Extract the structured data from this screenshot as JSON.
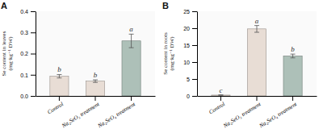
{
  "chart_data": [
    {
      "type": "bar",
      "title": "A",
      "categories": [
        "Control",
        "Na₂SeO₃ treatment",
        "Na₂SeO₄ treatment"
      ],
      "values": [
        0.093,
        0.07,
        0.26
      ],
      "errors": [
        0.008,
        0.006,
        0.032
      ],
      "colors": [
        "#e8ddd5",
        "#e8ddd5",
        "#adc0b8"
      ],
      "y_label": "Se content in leaves\n(mg·kg⁻¹ DW)",
      "ylim": [
        0,
        0.4
      ],
      "yticks": [
        {
          "value": 0.0,
          "label": "0.0"
        },
        0.1,
        0.2,
        0.3,
        0.4
      ],
      "annotations": [
        "b",
        "b",
        "a"
      ],
      "grid": false
    },
    {
      "type": "bar",
      "title": "B",
      "categories": [
        "Control",
        "Na₂SeO₃ treatment",
        "Na₂SeO₄ treatment"
      ],
      "values": [
        0.25,
        19.8,
        11.8
      ],
      "errors": [
        0.05,
        1.0,
        0.55
      ],
      "colors": [
        "#e8ddd5",
        "#e8ddd5",
        "#adc0b8"
      ],
      "y_label": "Se content in roots\n(mg·kg⁻¹ DW)",
      "ylim": [
        0,
        25
      ],
      "yticks": [
        0,
        5,
        10,
        15,
        20,
        25
      ],
      "annotations": [
        "c",
        "a",
        "b"
      ],
      "grid": false
    }
  ]
}
